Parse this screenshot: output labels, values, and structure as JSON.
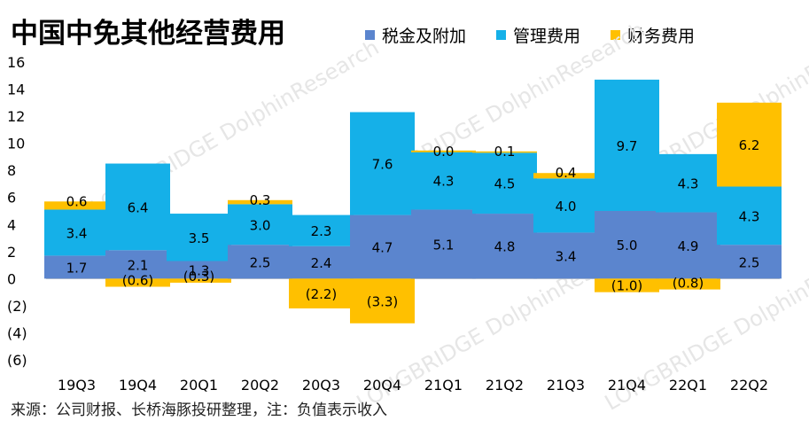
{
  "chart_data": {
    "type": "bar",
    "stacked": true,
    "title": "中国中免其他经营费用",
    "categories": [
      "19Q3",
      "19Q4",
      "20Q1",
      "20Q2",
      "20Q3",
      "20Q4",
      "21Q1",
      "21Q2",
      "21Q3",
      "21Q4",
      "22Q1",
      "22Q2"
    ],
    "series": [
      {
        "name": "税金及附加",
        "color": "#5B85CE",
        "values": [
          1.7,
          2.1,
          1.3,
          2.5,
          2.4,
          4.7,
          5.1,
          4.8,
          3.4,
          5.0,
          4.9,
          2.5
        ]
      },
      {
        "name": "管理费用",
        "color": "#15B0E8",
        "values": [
          3.4,
          6.4,
          3.5,
          3.0,
          2.3,
          7.6,
          4.3,
          4.5,
          4.0,
          9.7,
          4.3,
          4.3
        ]
      },
      {
        "name": "财务费用",
        "color": "#FFC000",
        "values": [
          0.6,
          -0.6,
          -0.3,
          0.3,
          -2.2,
          -3.3,
          0.0,
          0.1,
          0.4,
          -1.0,
          -0.8,
          6.2
        ]
      }
    ],
    "ylim": [
      -6,
      16
    ],
    "yticks": [
      16,
      14,
      12,
      10,
      8,
      6,
      4,
      2,
      0,
      "(2)",
      "(4)",
      "(6)"
    ],
    "legend_position": "top-right",
    "grid": false
  },
  "source_note": "来源：公司财报、长桥海豚投研整理，注：负值表示收入",
  "watermarks": [
    "LONGBRIDGE",
    "DolphinResearch"
  ]
}
